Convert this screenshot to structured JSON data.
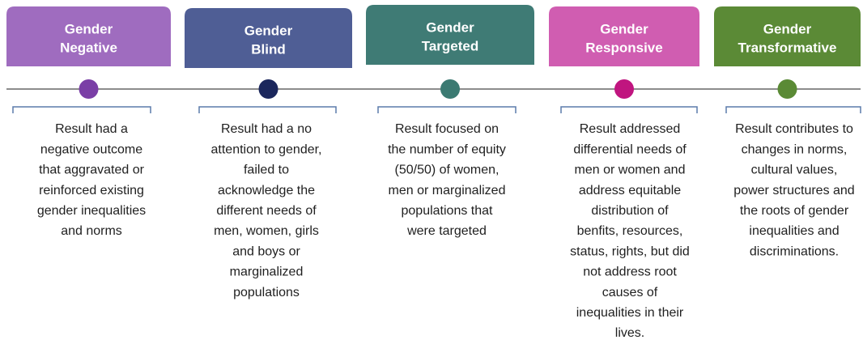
{
  "stages": [
    {
      "title": [
        "Gender",
        "Negative"
      ],
      "description": [
        "Result had a",
        "negative outcome",
        "that aggravated or",
        "reinforced existing",
        "gender inequalities",
        "and norms"
      ]
    },
    {
      "title": [
        "Gender",
        "Blind"
      ],
      "description": [
        "Result had a no",
        "attention to gender,",
        "failed to",
        "acknowledge the",
        "different needs of",
        "men, women, girls",
        "and boys or",
        "marginalized",
        "populations"
      ]
    },
    {
      "title": [
        "Gender",
        "Targeted"
      ],
      "description": [
        "Result focused on",
        "the number of equity",
        "(50/50) of women,",
        "men or marginalized",
        "populations that",
        "were targeted"
      ]
    },
    {
      "title": [
        "Gender",
        "Responsive"
      ],
      "description": [
        "Result addressed",
        "differential needs of",
        "men or women and",
        "address equitable",
        "distribution of",
        "benfits, resources,",
        "status, rights, but did",
        "not address root",
        "causes of",
        "inequalities in their",
        "lives."
      ]
    },
    {
      "title": [
        "Gender",
        "Transformative"
      ],
      "description": [
        "Result contributes to",
        "changes in norms,",
        "cultural values,",
        "power structures and",
        "the roots of gender",
        "inequalities and",
        "discriminations."
      ]
    }
  ]
}
